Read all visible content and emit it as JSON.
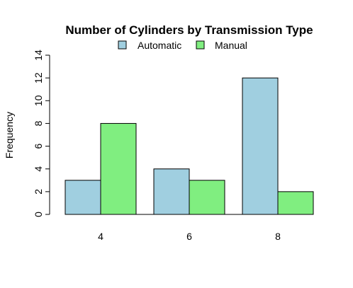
{
  "chart_data": {
    "type": "bar",
    "title": "Number of Cylinders by Transmission Type",
    "xlabel": "",
    "ylabel": "Frequency",
    "categories": [
      "4",
      "6",
      "8"
    ],
    "series": [
      {
        "name": "Automatic",
        "values": [
          3,
          4,
          12
        ],
        "color": "#a0cfe0"
      },
      {
        "name": "Manual",
        "values": [
          8,
          3,
          2
        ],
        "color": "#80ee80"
      }
    ],
    "ylim": [
      0,
      14
    ],
    "yticks": [
      0,
      2,
      4,
      6,
      8,
      10,
      12,
      14
    ],
    "grid": false,
    "legend_position": "top-center",
    "bar_outline_color": "#000000"
  }
}
